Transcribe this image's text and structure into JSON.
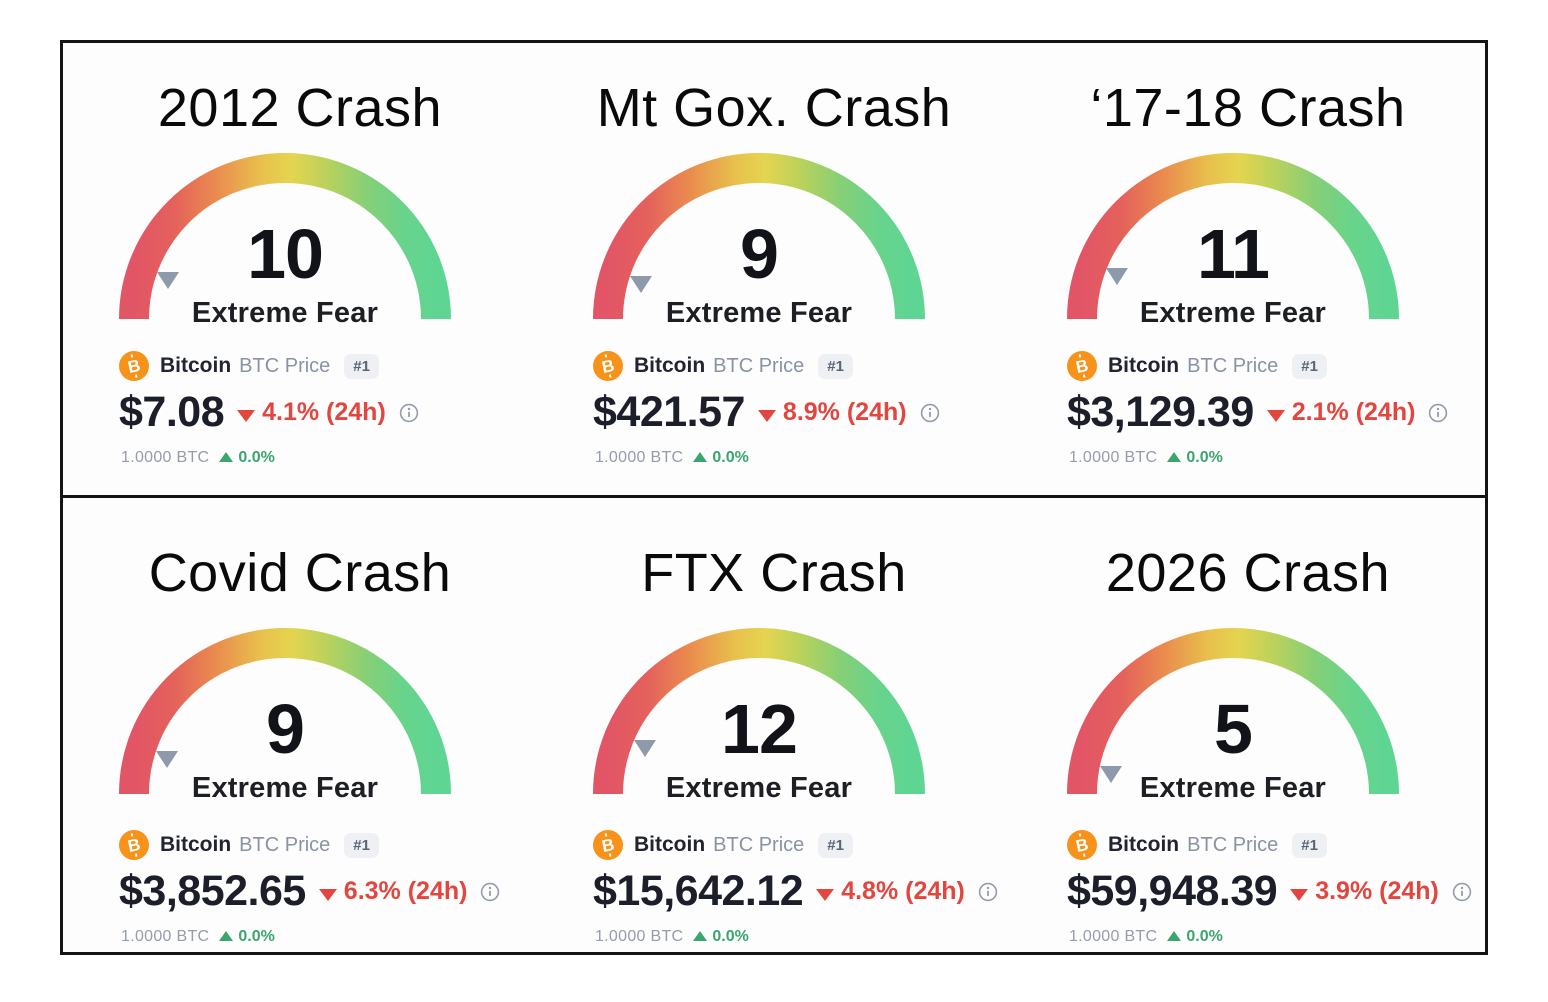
{
  "colors": {
    "arc_red": "#e25566",
    "arc_orange": "#ea8b4e",
    "arc_yellow": "#e5d44f",
    "arc_yellow_green": "#b9d25c",
    "arc_green_light": "#86cf76",
    "arc_green": "#5fd593",
    "negative_red": "#e3453f",
    "positive_green": "#3aa56d",
    "coin_orange": "#f7931a",
    "navy": "#222531",
    "gray": "#8a93a4",
    "badge_bg": "#eef0f4",
    "badge_text": "#5a6475",
    "pointer_gray": "#8e99ab"
  },
  "common": {
    "coin_name": "Bitcoin",
    "coin_label": "BTC Price",
    "rank_badge": "#1",
    "base_amount": "1.0000 BTC",
    "base_change": "0.0%"
  },
  "panels": [
    {
      "title": "2012 Crash",
      "value": "10",
      "classification": "Extreme Fear",
      "price": "$7.08",
      "change": "4.1% (24h)"
    },
    {
      "title": "Mt Gox. Crash",
      "value": "9",
      "classification": "Extreme Fear",
      "price": "$421.57",
      "change": "8.9% (24h)"
    },
    {
      "title": "‘17-18 Crash",
      "value": "11",
      "classification": "Extreme Fear",
      "price": "$3,129.39",
      "change": "2.1% (24h)"
    },
    {
      "title": "Covid Crash",
      "value": "9",
      "classification": "Extreme Fear",
      "price": "$3,852.65",
      "change": "6.3% (24h)"
    },
    {
      "title": "FTX Crash",
      "value": "12",
      "classification": "Extreme Fear",
      "price": "$15,642.12",
      "change": "4.8% (24h)"
    },
    {
      "title": "2026 Crash",
      "value": "5",
      "classification": "Extreme Fear",
      "price": "$59,948.39",
      "change": "3.9% (24h)"
    }
  ],
  "chart_data": [
    {
      "type": "gauge",
      "title": "2012 Crash",
      "value": 10,
      "range": [
        0,
        100
      ],
      "classification": "Extreme Fear",
      "btc_price_usd": 7.08,
      "change_24h_pct": -4.1,
      "base": "1.0000 BTC",
      "base_change_pct": 0.0
    },
    {
      "type": "gauge",
      "title": "Mt Gox. Crash",
      "value": 9,
      "range": [
        0,
        100
      ],
      "classification": "Extreme Fear",
      "btc_price_usd": 421.57,
      "change_24h_pct": -8.9,
      "base": "1.0000 BTC",
      "base_change_pct": 0.0
    },
    {
      "type": "gauge",
      "title": "'17-18 Crash",
      "value": 11,
      "range": [
        0,
        100
      ],
      "classification": "Extreme Fear",
      "btc_price_usd": 3129.39,
      "change_24h_pct": -2.1,
      "base": "1.0000 BTC",
      "base_change_pct": 0.0
    },
    {
      "type": "gauge",
      "title": "Covid Crash",
      "value": 9,
      "range": [
        0,
        100
      ],
      "classification": "Extreme Fear",
      "btc_price_usd": 3852.65,
      "change_24h_pct": -6.3,
      "base": "1.0000 BTC",
      "base_change_pct": 0.0
    },
    {
      "type": "gauge",
      "title": "FTX Crash",
      "value": 12,
      "range": [
        0,
        100
      ],
      "classification": "Extreme Fear",
      "btc_price_usd": 15642.12,
      "change_24h_pct": -4.8,
      "base": "1.0000 BTC",
      "base_change_pct": 0.0
    },
    {
      "type": "gauge",
      "title": "2026 Crash",
      "value": 5,
      "range": [
        0,
        100
      ],
      "classification": "Extreme Fear",
      "btc_price_usd": 59948.39,
      "change_24h_pct": -3.9,
      "base": "1.0000 BTC",
      "base_change_pct": 0.0
    }
  ]
}
